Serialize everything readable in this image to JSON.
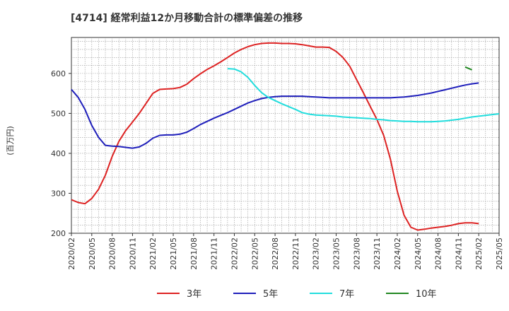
{
  "chart_data": {
    "type": "line",
    "title": "[4714]  経常利益12か月移動合計の標準偏差の推移",
    "ylabel": "(百万円)",
    "xlabel": "",
    "ylim": [
      200,
      690
    ],
    "yticks": [
      200,
      300,
      400,
      500,
      600
    ],
    "xlim": [
      "2020-02",
      "2025-05"
    ],
    "xticks": [
      "2020/02",
      "2020/05",
      "2020/08",
      "2020/11",
      "2021/02",
      "2021/05",
      "2021/08",
      "2021/11",
      "2022/02",
      "2022/05",
      "2022/08",
      "2022/11",
      "2023/02",
      "2023/05",
      "2023/08",
      "2023/11",
      "2024/02",
      "2024/05",
      "2024/08",
      "2024/11",
      "2025/02",
      "2025/05"
    ],
    "grid": true,
    "legend_position": "bottom",
    "series": [
      {
        "name": "3年",
        "color": "#dd2222",
        "start": "2020-02",
        "values": [
          284,
          277,
          274,
          287,
          310,
          345,
          392,
          430,
          457,
          478,
          500,
          525,
          550,
          560,
          561,
          562,
          565,
          573,
          587,
          599,
          610,
          619,
          629,
          640,
          651,
          660,
          667,
          672,
          675,
          676,
          676,
          675,
          675,
          674,
          672,
          669,
          666,
          666,
          665,
          655,
          640,
          618,
          585,
          552,
          518,
          485,
          445,
          385,
          305,
          245,
          215,
          208,
          210,
          213,
          215,
          217,
          220,
          224,
          226,
          226,
          224
        ]
      },
      {
        "name": "5年",
        "color": "#1f1fbb",
        "start": "2020-02",
        "values": [
          560,
          540,
          510,
          470,
          440,
          420,
          418,
          417,
          415,
          413,
          416,
          425,
          438,
          445,
          446,
          446,
          448,
          453,
          462,
          472,
          480,
          488,
          495,
          502,
          510,
          518,
          526,
          532,
          537,
          540,
          542,
          543,
          543,
          543,
          543,
          542,
          541,
          540,
          539,
          539,
          539,
          539,
          539,
          539,
          539,
          539,
          539,
          539,
          540,
          541,
          543,
          545,
          548,
          551,
          555,
          559,
          563,
          567,
          571,
          574,
          576
        ]
      },
      {
        "name": "7年",
        "color": "#22dddd",
        "start": "2022-01",
        "values": [
          612,
          611,
          604,
          590,
          570,
          552,
          540,
          532,
          524,
          517,
          510,
          502,
          498,
          496,
          495,
          494,
          493,
          491,
          490,
          489,
          488,
          487,
          485,
          484,
          482,
          481,
          480,
          480,
          479,
          479,
          479,
          480,
          481,
          483,
          485,
          488,
          491,
          493,
          495,
          497,
          499
        ]
      },
      {
        "name": "10年",
        "color": "#228822",
        "start": "2024-12",
        "values": [
          616,
          609
        ]
      }
    ]
  }
}
